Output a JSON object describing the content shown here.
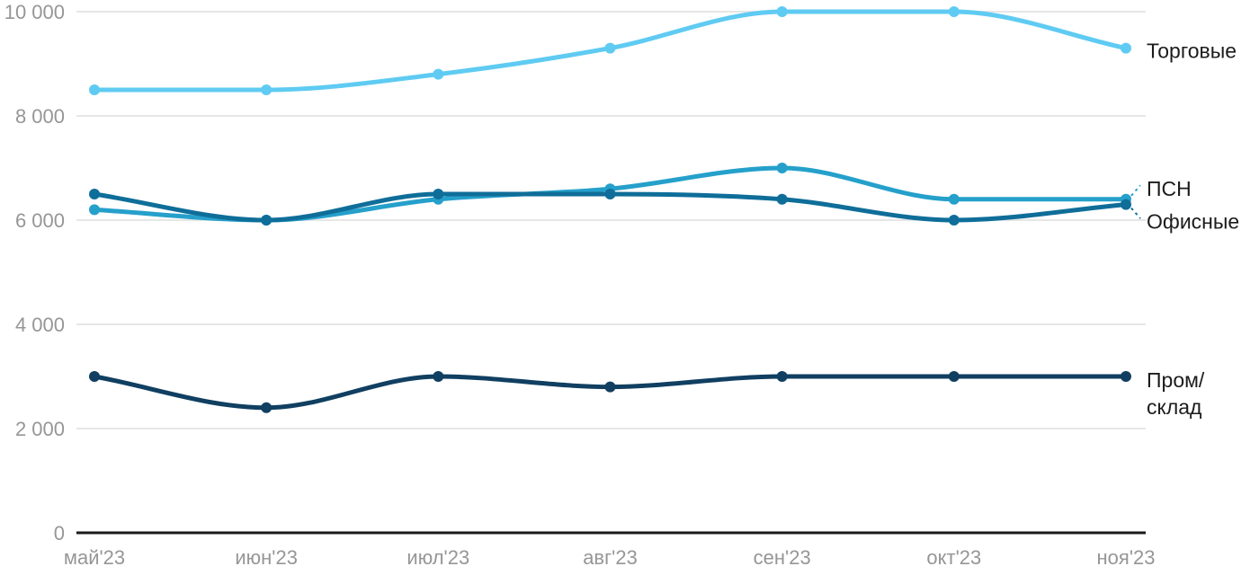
{
  "chart_data": {
    "type": "line",
    "title": "",
    "xlabel": "",
    "ylabel": "",
    "categories": [
      "май'23",
      "июн'23",
      "июл'23",
      "авг'23",
      "сен'23",
      "окт'23",
      "ноя'23"
    ],
    "series": [
      {
        "name": "Торговые",
        "key": "torgovye",
        "color": "#5FCBF2",
        "values": [
          8500,
          8500,
          8800,
          9300,
          10000,
          10000,
          9300
        ],
        "label_lines": [
          "Торговые"
        ],
        "label_dy": 3,
        "callout": false
      },
      {
        "name": "ПСН",
        "key": "psn",
        "color": "#25A0CB",
        "values": [
          6200,
          6000,
          6400,
          6600,
          7000,
          6400,
          6400
        ],
        "label_lines": [
          "ПСН"
        ],
        "label_dy": -12,
        "callout": true
      },
      {
        "name": "Офисные",
        "key": "ofisnye",
        "color": "#0F6E99",
        "values": [
          6500,
          6000,
          6500,
          6500,
          6400,
          6000,
          6300
        ],
        "label_lines": [
          "Офисные"
        ],
        "label_dy": 19,
        "callout": true
      },
      {
        "name": "Пром/склад",
        "key": "prom-sklad",
        "color": "#103F61",
        "values": [
          3000,
          2400,
          3000,
          2800,
          3000,
          3000,
          3000
        ],
        "label_lines": [
          "Пром/",
          "склад"
        ],
        "label_dy": 4,
        "callout": false
      }
    ],
    "yticks": [
      0,
      2000,
      4000,
      6000,
      8000,
      10000
    ],
    "ytick_labels": [
      "0",
      "2 000",
      "4 000",
      "6 000",
      "8 000",
      "10 000"
    ],
    "ylim": [
      0,
      10000
    ],
    "grid": true,
    "legend_position": "right-inline"
  },
  "colors": {
    "background": "#FFFFFF",
    "grid": "#E6E6E6",
    "axis": "#1A1A1A",
    "tick_label": "#969696",
    "series_label": "#1C1C1C"
  }
}
